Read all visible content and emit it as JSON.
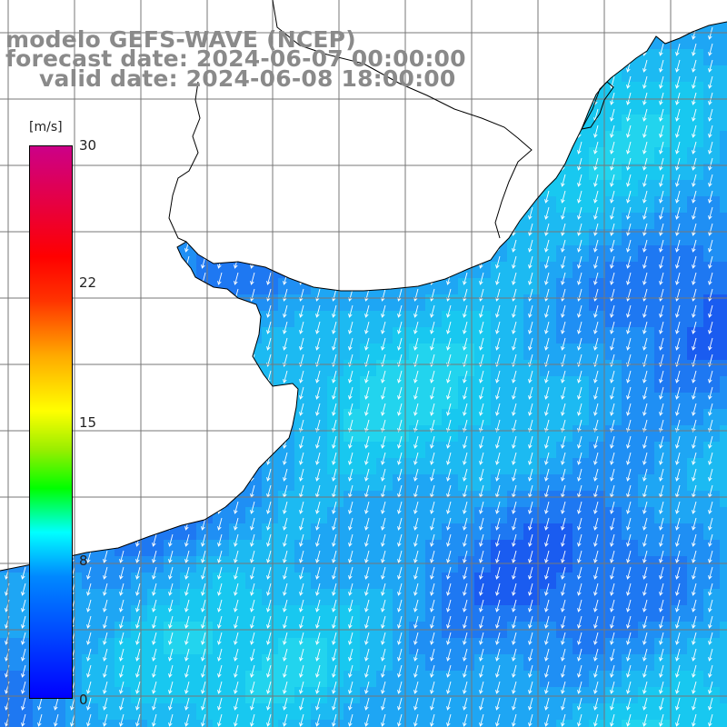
{
  "title": {
    "line1": "modelo GEFS-WAVE (NCEP)",
    "line2": "forecast date: 2024-06-07 00:00:00",
    "line3": "valid date: 2024-06-08 18:00:00"
  },
  "colorbar": {
    "unit": "[m/s]",
    "ticks": [
      "0",
      "8",
      "15",
      "22",
      "30"
    ],
    "range": [
      0,
      30
    ],
    "colors": [
      "#0000ff",
      "#0088ff",
      "#00ffff",
      "#00ff00",
      "#ffff00",
      "#ffaa00",
      "#ff0000",
      "#cc0088"
    ]
  },
  "map": {
    "field": "wind speed",
    "prevailing_arrow_direction": "south-southwest",
    "land_color": "#ffffff",
    "gridlines": true
  }
}
